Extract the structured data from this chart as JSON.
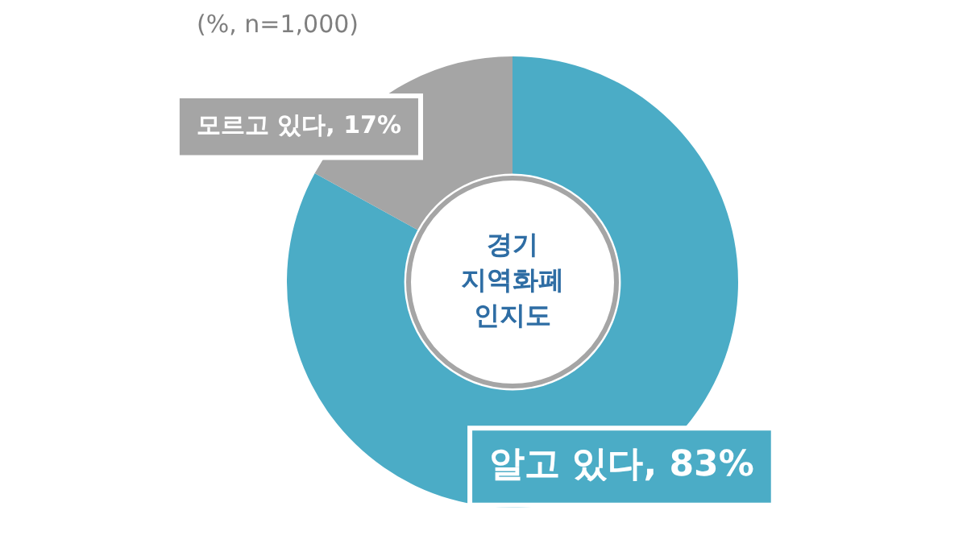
{
  "chart_data": {
    "type": "donut",
    "title": "경기 지역화폐 인지도",
    "categories": [
      "알고 있다",
      "모르고 있다"
    ],
    "values": [
      83,
      17
    ],
    "value_labels": [
      "83%",
      "17%"
    ],
    "colors": [
      "#4bacc6",
      "#a5a5a5"
    ],
    "legend": false,
    "annotations": [
      "(%, n=1,000)"
    ]
  }
}
